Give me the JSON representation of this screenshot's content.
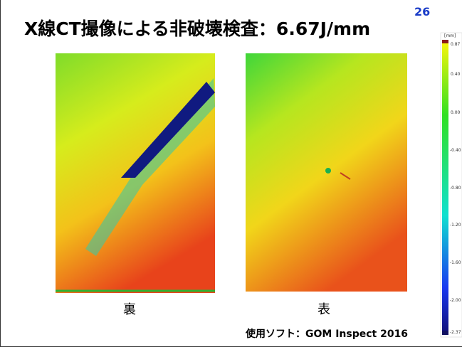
{
  "header": {
    "title": "X線CT撮像による非破壊検査：6.67J/mm",
    "page_number": "26"
  },
  "panels": [
    {
      "label": "裏"
    },
    {
      "label": "表"
    }
  ],
  "colorbar": {
    "unit": "[mm]",
    "labels": [
      "0.87",
      "0.40",
      "0.00",
      "-0.40",
      "-0.80",
      "-1.20",
      "-1.60",
      "-2.00",
      "-2.37"
    ]
  },
  "footer": {
    "software": "使用ソフト：GOM Inspect 2016"
  }
}
